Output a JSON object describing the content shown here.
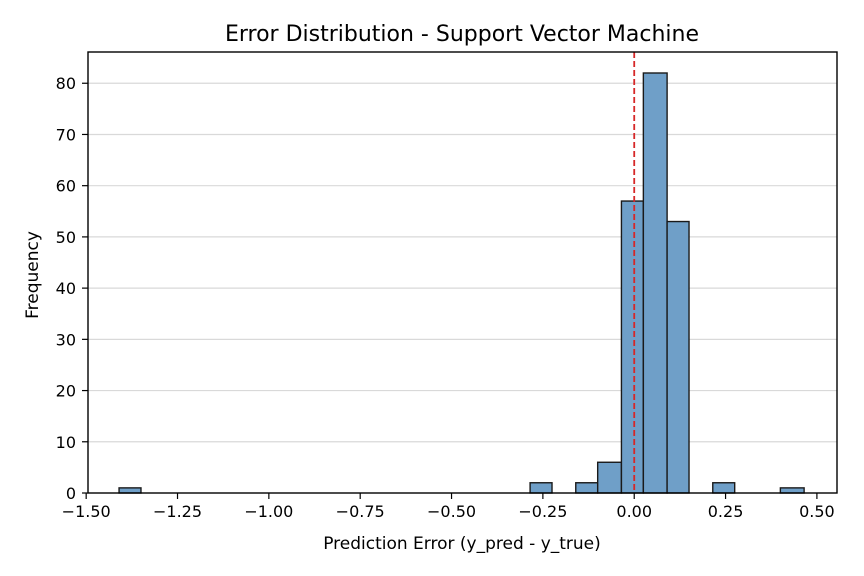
{
  "chart_data": {
    "type": "bar",
    "title": "Error Distribution - Support Vector Machine",
    "xlabel": "Prediction Error (y_pred - y_true)",
    "ylabel": "Frequency",
    "xlim": [
      -1.495,
      0.555
    ],
    "ylim": [
      0,
      86.1
    ],
    "xticks": [
      -1.5,
      -1.25,
      -1.0,
      -0.75,
      -0.5,
      -0.25,
      0.0,
      0.25,
      0.5
    ],
    "xtick_labels": [
      "−1.50",
      "−1.25",
      "−1.00",
      "−0.75",
      "−0.50",
      "−0.25",
      "0.00",
      "0.25",
      "0.50"
    ],
    "yticks": [
      0,
      10,
      20,
      30,
      40,
      50,
      60,
      70,
      80
    ],
    "ytick_labels": [
      "0",
      "10",
      "20",
      "30",
      "40",
      "50",
      "60",
      "70",
      "80"
    ],
    "grid": "y",
    "reference_line_x": 0.0,
    "bins": [
      {
        "x0": -1.41,
        "x1": -1.35,
        "count": 1
      },
      {
        "x0": -0.285,
        "x1": -0.225,
        "count": 2
      },
      {
        "x0": -0.16,
        "x1": -0.1,
        "count": 2
      },
      {
        "x0": -0.1,
        "x1": -0.035,
        "count": 6
      },
      {
        "x0": -0.035,
        "x1": 0.025,
        "count": 57
      },
      {
        "x0": 0.025,
        "x1": 0.09,
        "count": 82
      },
      {
        "x0": 0.09,
        "x1": 0.15,
        "count": 53
      },
      {
        "x0": 0.215,
        "x1": 0.275,
        "count": 2
      },
      {
        "x0": 0.4,
        "x1": 0.465,
        "count": 1
      }
    ],
    "colors": {
      "bar_fill": "#6f9fc8",
      "bar_edge": "#1a1a1a",
      "reference_line": "#d62728",
      "grid": "#d9d9d9"
    }
  }
}
